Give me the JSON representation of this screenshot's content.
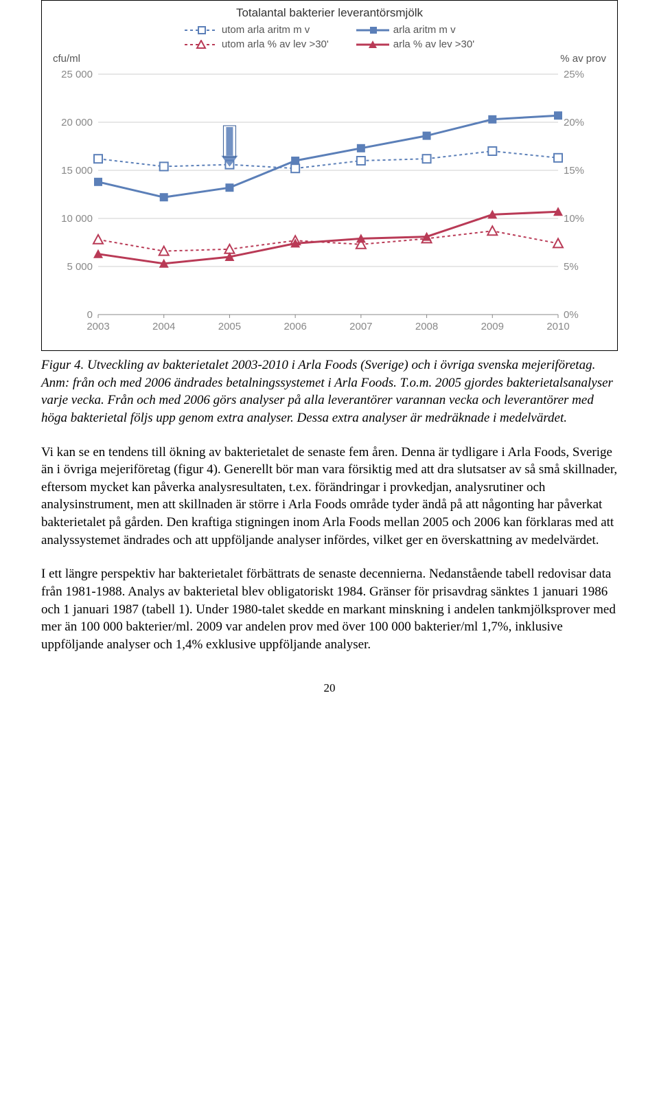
{
  "chart": {
    "type": "line",
    "title": "Totalantal bakterier leverantörsmjölk",
    "left_axis_label": "cfu/ml",
    "right_axis_label": "% av prov",
    "legend": {
      "utom_arla_aritm": "utom arla aritm m v",
      "arla_aritm": "arla aritm m v",
      "utom_arla_pct": "utom arla % av lev >30'",
      "arla_pct": "arla % av lev >30'"
    },
    "x_categories": [
      "2003",
      "2004",
      "2005",
      "2006",
      "2007",
      "2008",
      "2009",
      "2010"
    ],
    "y_left": {
      "min": 0,
      "max": 25000,
      "step": 5000,
      "ticks": [
        "0",
        "5 000",
        "10 000",
        "15 000",
        "20 000",
        "25 000"
      ]
    },
    "y_right": {
      "min": 0,
      "max": 25,
      "step": 5,
      "ticks": [
        "0%",
        "5%",
        "10%",
        "15%",
        "20%",
        "25%"
      ]
    },
    "series": {
      "utom_arla_aritm": {
        "color": "#5b7fb8",
        "marker": "square-open",
        "dash": "4,4",
        "values": [
          16200,
          15400,
          15600,
          15200,
          16000,
          16200,
          17000,
          16300
        ]
      },
      "arla_aritm": {
        "color": "#5b7fb8",
        "marker": "square-solid",
        "dash": "none",
        "values": [
          13800,
          12200,
          13200,
          16000,
          17300,
          18600,
          20300,
          20700
        ]
      },
      "utom_arla_pct": {
        "color": "#b93a56",
        "marker": "triangle-open",
        "dash": "4,4",
        "values": [
          7800,
          6600,
          6800,
          7700,
          7300,
          7900,
          8700,
          7400
        ]
      },
      "arla_pct": {
        "color": "#b93a56",
        "marker": "triangle-solid",
        "dash": "none",
        "values": [
          6300,
          5300,
          6000,
          7400,
          7900,
          8100,
          10400,
          10700
        ]
      }
    },
    "arrow": {
      "x_index": 2,
      "from_y": 19500,
      "to_y": 15800,
      "color": "#5b7fb8"
    },
    "background_color": "#ffffff",
    "grid_color": "#cfcfcf",
    "tick_font_color": "#888888",
    "label_fontsize": 15
  },
  "caption": "Figur 4. Utveckling av bakterietalet 2003-2010 i Arla Foods (Sverige) och i övriga svenska mejeriföretag.\nAnm: från och med 2006 ändrades betalningssystemet i Arla Foods. T.o.m. 2005 gjordes bakterietalsanalyser varje vecka. Från och med 2006 görs analyser på alla leverantörer varannan vecka och leverantörer med höga bakterietal följs upp genom extra analyser. Dessa extra analyser är medräknade i medelvärdet.",
  "paragraph1": "Vi kan se en tendens till ökning av bakterietalet de senaste fem åren. Denna är tydligare i Arla Foods, Sverige än i övriga mejeriföretag (figur 4). Generellt bör man vara försiktig med att dra slutsatser av så små skillnader, eftersom mycket kan påverka analysresultaten, t.ex. förändringar i provkedjan, analysrutiner och analysinstrument, men att skillnaden är större i Arla Foods område tyder ändå på att någonting har påverkat bakterietalet på gården. Den kraftiga stigningen inom Arla Foods mellan 2005 och 2006 kan förklaras med att analyssystemet ändrades och att uppföljande analyser infördes, vilket ger en överskattning av medelvärdet.",
  "paragraph2": "I ett längre perspektiv har bakterietalet förbättrats de senaste decennierna. Nedanstående tabell redovisar data från 1981-1988. Analys av bakterietal blev obligatoriskt 1984. Gränser för prisavdrag sänktes 1 januari 1986 och 1 januari 1987 (tabell 1). Under 1980-talet skedde en markant minskning i andelen tankmjölksprover med mer än 100 000 bakterier/ml. 2009 var andelen prov med över 100 000 bakterier/ml 1,7%, inklusive uppföljande analyser och 1,4% exklusive uppföljande analyser.",
  "page_number": "20"
}
